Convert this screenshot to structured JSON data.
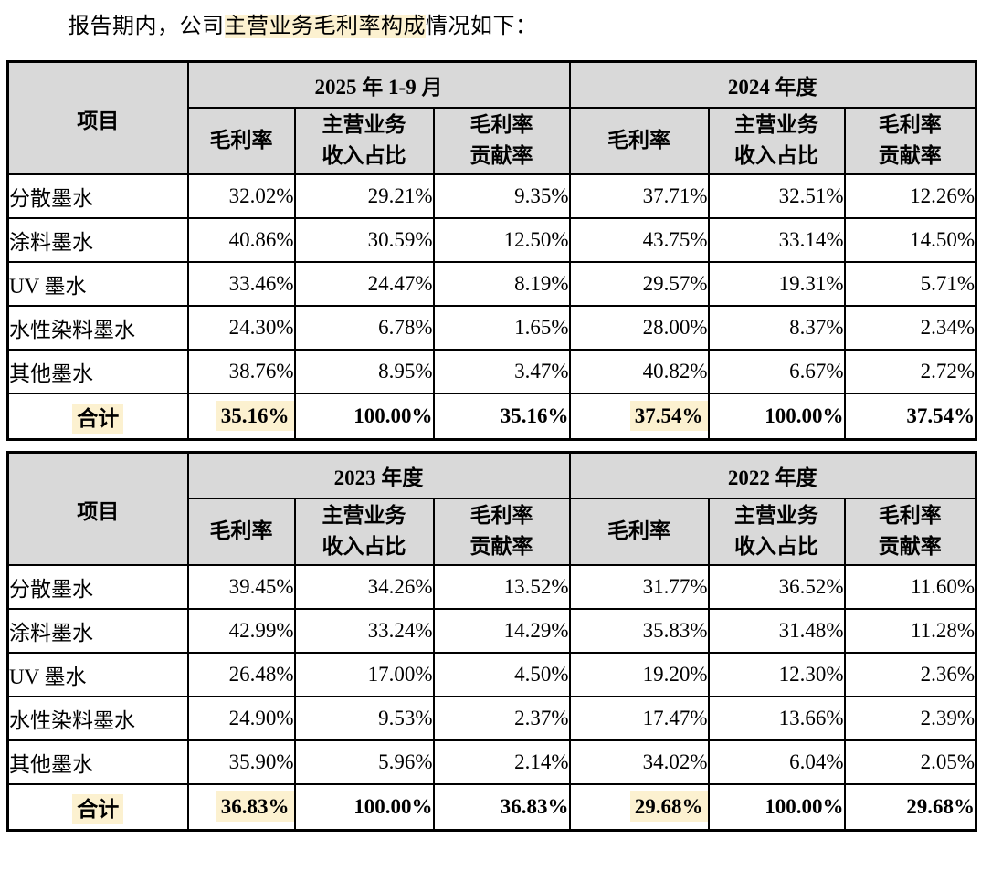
{
  "colors": {
    "highlight": "#fcf1d0",
    "header_bg": "#d9d9d9",
    "border": "#000000"
  },
  "intro": {
    "prefix": "报告期内，公司",
    "highlight": "主营业务毛利率构成",
    "suffix": "情况如下："
  },
  "table_header": {
    "item_label": "项目",
    "sub_columns": [
      [
        "毛利率"
      ],
      [
        "主营业务",
        "收入占比"
      ],
      [
        "毛利率",
        "贡献率"
      ]
    ]
  },
  "tables": [
    {
      "periods": [
        "2025 年 1-9 月",
        "2024 年度"
      ],
      "rows": [
        {
          "name": "分散墨水",
          "values": [
            "32.02%",
            "29.21%",
            "9.35%",
            "37.71%",
            "32.51%",
            "12.26%"
          ]
        },
        {
          "name": "涂料墨水",
          "values": [
            "40.86%",
            "30.59%",
            "12.50%",
            "43.75%",
            "33.14%",
            "14.50%"
          ]
        },
        {
          "name": "UV 墨水",
          "values": [
            "33.46%",
            "24.47%",
            "8.19%",
            "29.57%",
            "19.31%",
            "5.71%"
          ]
        },
        {
          "name": "水性染料墨水",
          "values": [
            "24.30%",
            "6.78%",
            "1.65%",
            "28.00%",
            "8.37%",
            "2.34%"
          ]
        },
        {
          "name": "其他墨水",
          "values": [
            "38.76%",
            "8.95%",
            "3.47%",
            "40.82%",
            "6.67%",
            "2.72%"
          ]
        }
      ],
      "total": {
        "name": "合计",
        "values": [
          "35.16%",
          "100.00%",
          "35.16%",
          "37.54%",
          "100.00%",
          "37.54%"
        ],
        "highlighted_value_indices": [
          0,
          3
        ]
      }
    },
    {
      "periods": [
        "2023 年度",
        "2022 年度"
      ],
      "rows": [
        {
          "name": "分散墨水",
          "values": [
            "39.45%",
            "34.26%",
            "13.52%",
            "31.77%",
            "36.52%",
            "11.60%"
          ]
        },
        {
          "name": "涂料墨水",
          "values": [
            "42.99%",
            "33.24%",
            "14.29%",
            "35.83%",
            "31.48%",
            "11.28%"
          ]
        },
        {
          "name": "UV 墨水",
          "values": [
            "26.48%",
            "17.00%",
            "4.50%",
            "19.20%",
            "12.30%",
            "2.36%"
          ]
        },
        {
          "name": "水性染料墨水",
          "values": [
            "24.90%",
            "9.53%",
            "2.37%",
            "17.47%",
            "13.66%",
            "2.39%"
          ]
        },
        {
          "name": "其他墨水",
          "values": [
            "35.90%",
            "5.96%",
            "2.14%",
            "34.02%",
            "6.04%",
            "2.05%"
          ]
        }
      ],
      "total": {
        "name": "合计",
        "values": [
          "36.83%",
          "100.00%",
          "36.83%",
          "29.68%",
          "100.00%",
          "29.68%"
        ],
        "highlighted_value_indices": [
          0,
          3
        ]
      }
    }
  ]
}
